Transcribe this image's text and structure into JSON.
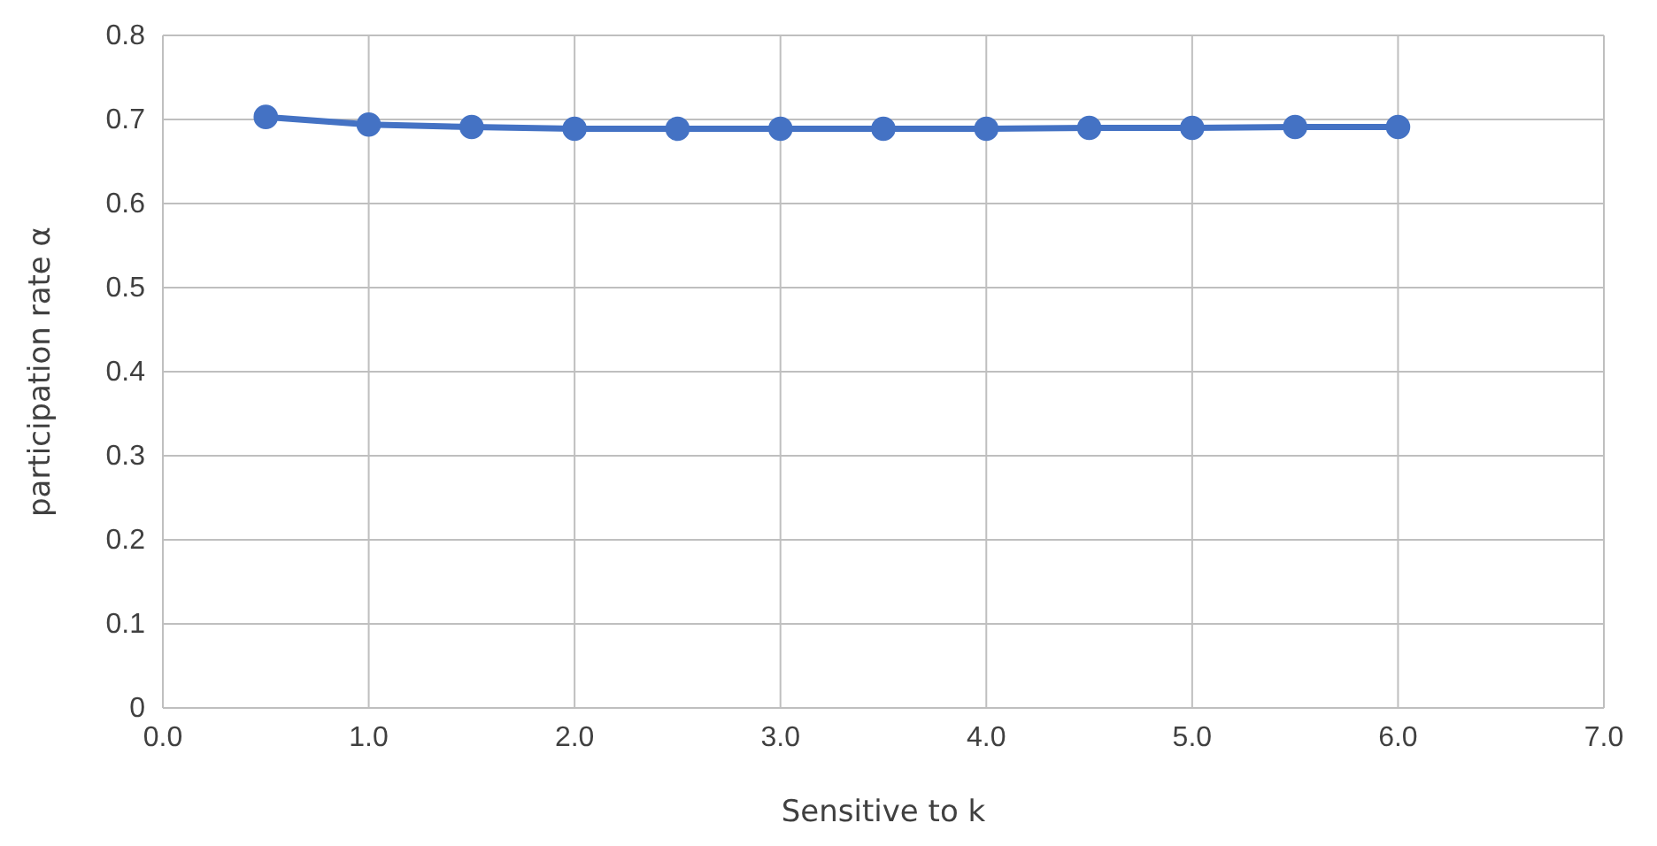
{
  "chart_data": {
    "type": "line",
    "xlabel": "Sensitive to k",
    "ylabel": "participation rate α",
    "x": [
      0.5,
      1.0,
      1.5,
      2.0,
      2.5,
      3.0,
      3.5,
      4.0,
      4.5,
      5.0,
      5.5,
      6.0
    ],
    "series": [
      {
        "color": "#4472c4",
        "values": [
          0.703,
          0.694,
          0.691,
          0.689,
          0.689,
          0.689,
          0.689,
          0.689,
          0.69,
          0.69,
          0.691,
          0.691
        ]
      }
    ],
    "xlim": [
      0,
      7
    ],
    "xticks": [
      {
        "value": 0,
        "label": "0.0"
      },
      {
        "value": 1,
        "label": "1.0"
      },
      {
        "value": 2,
        "label": "2.0"
      },
      {
        "value": 3,
        "label": "3.0"
      },
      {
        "value": 4,
        "label": "4.0"
      },
      {
        "value": 5,
        "label": "5.0"
      },
      {
        "value": 6,
        "label": "6.0"
      },
      {
        "value": 7,
        "label": "7.0"
      }
    ],
    "ylim": [
      0,
      0.8
    ],
    "yticks": [
      0,
      0.1,
      0.2,
      0.3,
      0.4,
      0.5,
      0.6,
      0.7,
      0.8
    ],
    "grid": true,
    "marker": "circle",
    "line_style": "solid"
  }
}
